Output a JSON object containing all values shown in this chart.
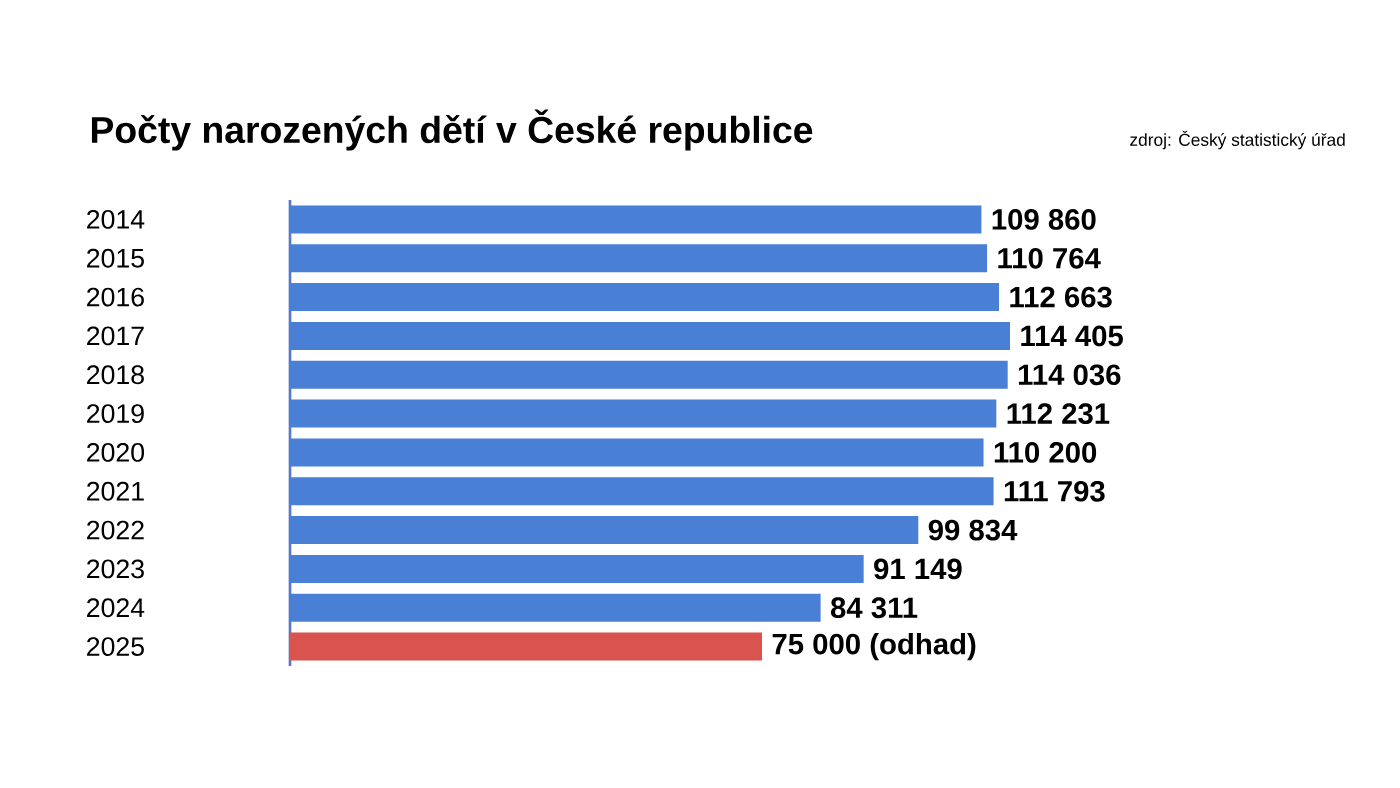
{
  "chart_data": {
    "type": "bar",
    "orientation": "horizontal",
    "title": "Počty narozených dětí v České republice",
    "annotations": [
      "zdroj: Český statistický úřad"
    ],
    "categories": [
      "2014",
      "2015",
      "2016",
      "2017",
      "2018",
      "2019",
      "2020",
      "2021",
      "2022",
      "2023",
      "2024",
      "2025"
    ],
    "values": [
      109860,
      110764,
      112663,
      114405,
      114036,
      112231,
      110200,
      111793,
      99834,
      91149,
      84311,
      75000
    ],
    "value_labels": [
      "109 860",
      "110 764",
      "112 663",
      "114 405",
      "114 036",
      "112 231",
      "110 200",
      "111 793",
      "99 834",
      "91 149",
      "84 311",
      "75 000 (odhad)"
    ],
    "colors": [
      "#4a7fd6",
      "#4a7fd6",
      "#4a7fd6",
      "#4a7fd6",
      "#4a7fd6",
      "#4a7fd6",
      "#4a7fd6",
      "#4a7fd6",
      "#4a7fd6",
      "#4a7fd6",
      "#4a7fd6",
      "#d9534f"
    ]
  }
}
